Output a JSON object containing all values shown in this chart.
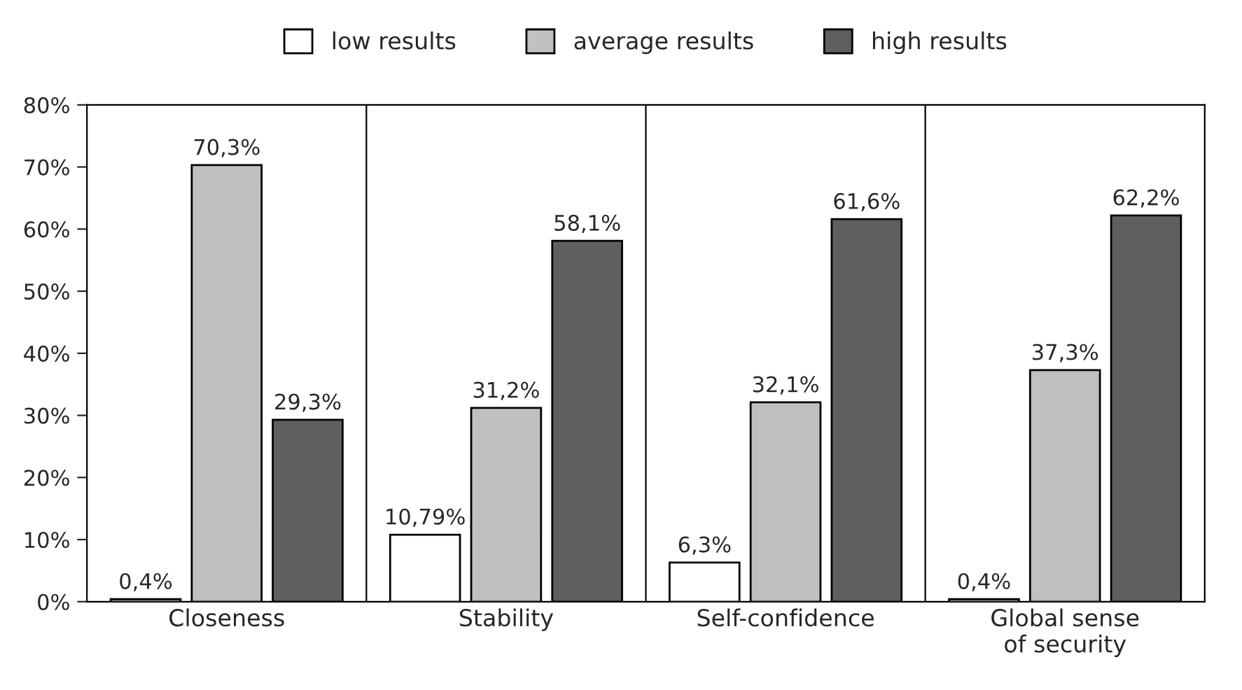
{
  "chart_data": {
    "type": "bar",
    "categories": [
      "Closeness",
      "Stability",
      "Self-confidence",
      "Global sense\nof security"
    ],
    "series": [
      {
        "name": "low results",
        "color": "#ffffff",
        "values": [
          0.4,
          10.79,
          6.3,
          0.4
        ],
        "value_labels": [
          "0,4%",
          "10,79%",
          "6,3%",
          "0,4%"
        ]
      },
      {
        "name": "average results",
        "color": "#c0c0c0",
        "values": [
          70.3,
          31.2,
          32.1,
          37.3
        ],
        "value_labels": [
          "70,3%",
          "31,2%",
          "32,1%",
          "37,3%"
        ]
      },
      {
        "name": "high results",
        "color": "#5f5f5f",
        "values": [
          29.3,
          58.1,
          61.6,
          62.2
        ],
        "value_labels": [
          "29,3%",
          "58,1%",
          "61,6%",
          "62,2%"
        ]
      }
    ],
    "ylim": [
      0,
      80
    ],
    "yticks": [
      {
        "value": 0,
        "label": "0%"
      },
      {
        "value": 10,
        "label": "10%"
      },
      {
        "value": 20,
        "label": "20%"
      },
      {
        "value": 30,
        "label": "30%"
      },
      {
        "value": 40,
        "label": "40%"
      },
      {
        "value": 50,
        "label": "50%"
      },
      {
        "value": 60,
        "label": "60%"
      },
      {
        "value": 70,
        "label": "70%"
      },
      {
        "value": 80,
        "label": "80%"
      }
    ],
    "grid": "x",
    "legend": "top"
  }
}
